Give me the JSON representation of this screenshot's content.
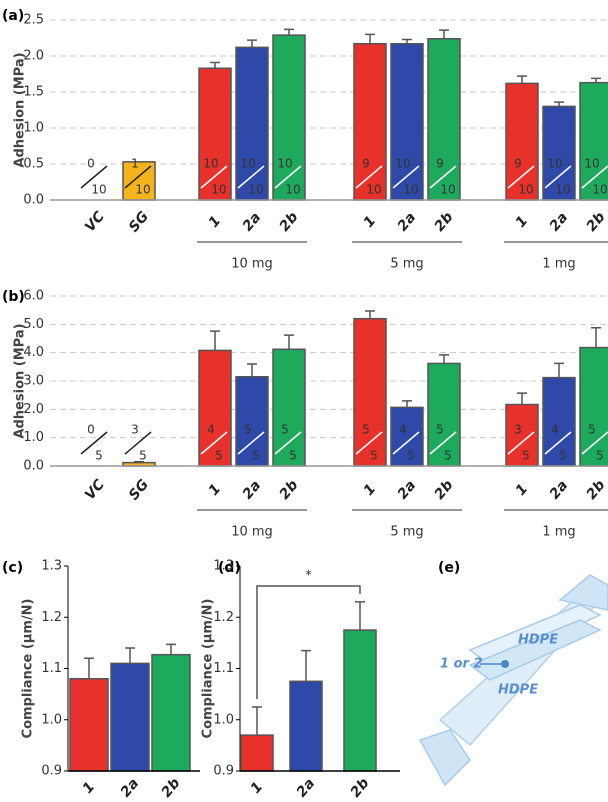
{
  "chart_data": [
    {
      "type": "bar",
      "panel": "(a)",
      "y_label": "Adhesion (MPa)",
      "categories": [
        "VC",
        "SG",
        "1",
        "2a",
        "2b",
        "1",
        "2a",
        "2b",
        "1",
        "2a",
        "2b"
      ],
      "groups": [
        "10 mg",
        "5 mg",
        "1 mg"
      ],
      "values": [
        0,
        0.53,
        1.83,
        2.12,
        2.29,
        2.17,
        2.17,
        2.24,
        1.62,
        1.3,
        1.63
      ],
      "errors": [
        null,
        null,
        0.08,
        0.1,
        0.08,
        0.13,
        0.06,
        0.12,
        0.1,
        0.06,
        0.06
      ],
      "colors": [
        null,
        "#f5b31c",
        "#e8312a",
        "#2e49a8",
        "#1eaa5c",
        "#e8312a",
        "#2e49a8",
        "#1eaa5c",
        "#e8312a",
        "#2e49a8",
        "#1eaa5c"
      ],
      "fractions": [
        [
          0,
          10
        ],
        [
          1,
          10
        ],
        [
          10,
          10
        ],
        [
          10,
          10
        ],
        [
          10,
          10
        ],
        [
          9,
          10
        ],
        [
          10,
          10
        ],
        [
          9,
          10
        ],
        [
          9,
          10
        ],
        [
          10,
          10
        ],
        [
          10,
          10
        ]
      ],
      "ylim": [
        0,
        2.5
      ],
      "yticks": [
        {
          "value": 0,
          "label": "0.0"
        },
        0.5,
        {
          "value": 1,
          "label": "1.0"
        },
        1.5,
        {
          "value": 2,
          "label": "2.0"
        },
        2.5
      ],
      "grid": true
    },
    {
      "type": "bar",
      "panel": "(b)",
      "y_label": "Adhesion (MPa)",
      "categories": [
        "VC",
        "SG",
        "1",
        "2a",
        "2b",
        "1",
        "2a",
        "2b",
        "1",
        "2a",
        "2b"
      ],
      "groups": [
        "10 mg",
        "5 mg",
        "1 mg"
      ],
      "values": [
        0,
        0.12,
        4.08,
        3.15,
        4.12,
        5.2,
        2.07,
        3.62,
        2.17,
        3.12,
        4.18
      ],
      "errors": [
        null,
        0.03,
        0.68,
        0.45,
        0.5,
        0.27,
        0.23,
        0.3,
        0.4,
        0.5,
        0.7
      ],
      "colors": [
        null,
        "#f5b31c",
        "#e8312a",
        "#2e49a8",
        "#1eaa5c",
        "#e8312a",
        "#2e49a8",
        "#1eaa5c",
        "#e8312a",
        "#2e49a8",
        "#1eaa5c"
      ],
      "fractions": [
        [
          0,
          5
        ],
        [
          3,
          5
        ],
        [
          4,
          5
        ],
        [
          5,
          5
        ],
        [
          5,
          5
        ],
        [
          5,
          5
        ],
        [
          4,
          5
        ],
        [
          5,
          5
        ],
        [
          3,
          5
        ],
        [
          4,
          5
        ],
        [
          5,
          5
        ]
      ],
      "ylim": [
        0,
        6
      ],
      "yticks": [
        {
          "value": 0,
          "label": "0.0"
        },
        {
          "value": 1,
          "label": "1.0"
        },
        {
          "value": 2,
          "label": "2.0"
        },
        {
          "value": 3,
          "label": "3.0"
        },
        {
          "value": 4,
          "label": "4.0"
        },
        {
          "value": 5,
          "label": "5.0"
        },
        {
          "value": 6,
          "label": "6.0"
        }
      ],
      "grid": true
    },
    {
      "type": "bar",
      "panel": "(c)",
      "y_label": "Compliance (µm/N)",
      "categories": [
        "1",
        "2a",
        "2b"
      ],
      "values": [
        1.08,
        1.11,
        1.127
      ],
      "errors": [
        0.04,
        0.03,
        0.02
      ],
      "colors": [
        "#e8312a",
        "#2e49a8",
        "#1eaa5c"
      ],
      "ylim": [
        0.9,
        1.3
      ],
      "yticks": [
        0.9,
        {
          "value": 1,
          "label": "1.0"
        },
        1.1,
        1.2,
        1.3
      ],
      "grid": false
    },
    {
      "type": "bar",
      "panel": "(d)",
      "y_label": "Compliance (µm/N)",
      "categories": [
        "1",
        "2a",
        "2b"
      ],
      "values": [
        0.97,
        1.075,
        1.175
      ],
      "errors": [
        0.055,
        0.06,
        0.055
      ],
      "colors": [
        "#e8312a",
        "#2e49a8",
        "#1eaa5c"
      ],
      "ylim": [
        0.9,
        1.3
      ],
      "yticks": [
        0.9,
        {
          "value": 1,
          "label": "1.0"
        },
        1.1,
        1.2,
        1.3
      ],
      "grid": false,
      "annotation": "*"
    }
  ],
  "diagram": {
    "panel": "(e)",
    "labels": [
      "HDPE",
      "HDPE",
      "1 or 2"
    ]
  }
}
